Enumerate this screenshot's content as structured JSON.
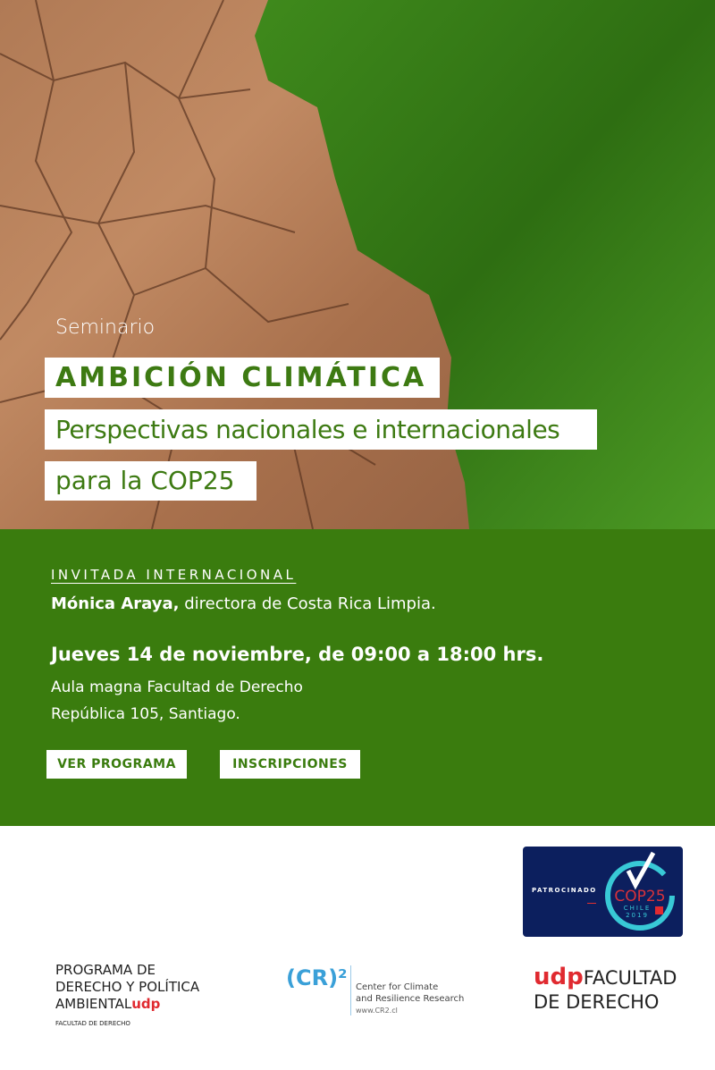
{
  "hero": {
    "kicker": "Seminario",
    "title": "AMBICIÓN CLIMÁTICA",
    "subtitle_line1": "Perspectivas nacionales e internacionales",
    "subtitle_line2": "para la COP25"
  },
  "details": {
    "guest_label": "INVITADA INTERNACIONAL",
    "guest_name": "Mónica Araya,",
    "guest_role": " directora de Costa Rica Limpia.",
    "date": "Jueves 14 de noviembre, de 09:00 a 18:00 hrs.",
    "venue": "Aula magna Facultad de Derecho",
    "address": "República 105, Santiago."
  },
  "buttons": {
    "program": "VER PROGRAMA",
    "register": "INSCRIPCIONES"
  },
  "sponsor": {
    "label": "PATROCINADO",
    "cop": "COP25",
    "country": "CHILE",
    "year": "2019"
  },
  "logos": {
    "program": {
      "line1": "PROGRAMA DE",
      "line2": "DERECHO Y POLÍTICA",
      "line3": "AMBIENTAL",
      "udp": "udp",
      "sub": "FACULTAD DE DERECHO"
    },
    "cr2": {
      "mark": "(CR)²",
      "line1": "Center for Climate",
      "line2": "and Resilience Research",
      "url": "www.CR2.cl"
    },
    "faculty": {
      "udp": "udp",
      "line1": "FACULTAD",
      "line2": "DE DERECHO"
    }
  },
  "colors": {
    "green": "#3a7c0e",
    "red": "#e02a30",
    "navy": "#0c1f5e"
  }
}
